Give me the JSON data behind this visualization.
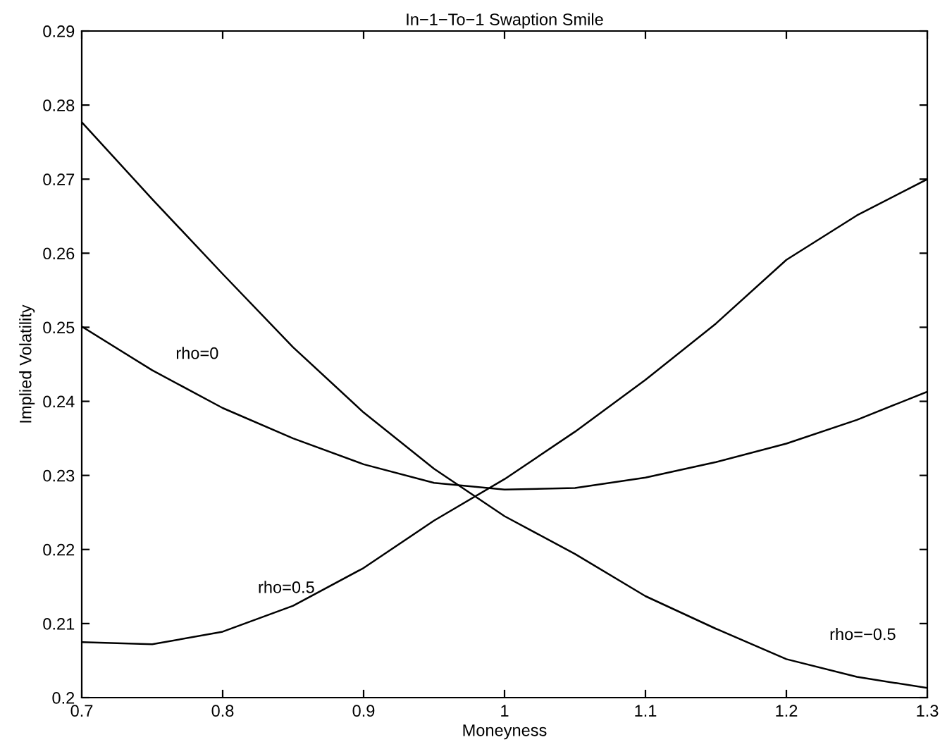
{
  "chart_data": {
    "type": "line",
    "title": "In−1−To−1 Swaption Smile",
    "xlabel": "Moneyness",
    "ylabel": "Implied Volatility",
    "x": [
      0.7,
      0.75,
      0.8,
      0.85,
      0.9,
      0.95,
      1.0,
      1.05,
      1.1,
      1.15,
      1.2,
      1.25,
      1.3
    ],
    "series": [
      {
        "name": "rho=−0.5",
        "color": "#000000",
        "values": [
          0.2777,
          0.2673,
          0.2572,
          0.2473,
          0.2385,
          0.2309,
          0.2245,
          0.2194,
          0.2137,
          0.2093,
          0.2052,
          0.2028,
          0.2013
        ]
      },
      {
        "name": "rho=0",
        "color": "#000000",
        "values": [
          0.2501,
          0.2442,
          0.2391,
          0.235,
          0.2315,
          0.229,
          0.2281,
          0.2283,
          0.2297,
          0.2318,
          0.2343,
          0.2375,
          0.2413
        ]
      },
      {
        "name": "rho=0.5",
        "color": "#000000",
        "values": [
          0.2075,
          0.2072,
          0.2089,
          0.2124,
          0.2175,
          0.2239,
          0.2295,
          0.2359,
          0.2429,
          0.2505,
          0.2591,
          0.2651,
          0.27
        ]
      }
    ],
    "xlim": [
      0.7,
      1.3
    ],
    "xticks": [
      0.7,
      0.8,
      0.9,
      1,
      1.1,
      1.2,
      1.3
    ],
    "ylim": [
      0.2,
      0.29
    ],
    "yticks": [
      0.2,
      0.21,
      0.22,
      0.23,
      0.24,
      0.25,
      0.26,
      0.27,
      0.28,
      0.29
    ],
    "grid": false,
    "marker": "none",
    "line_style": "solid"
  }
}
